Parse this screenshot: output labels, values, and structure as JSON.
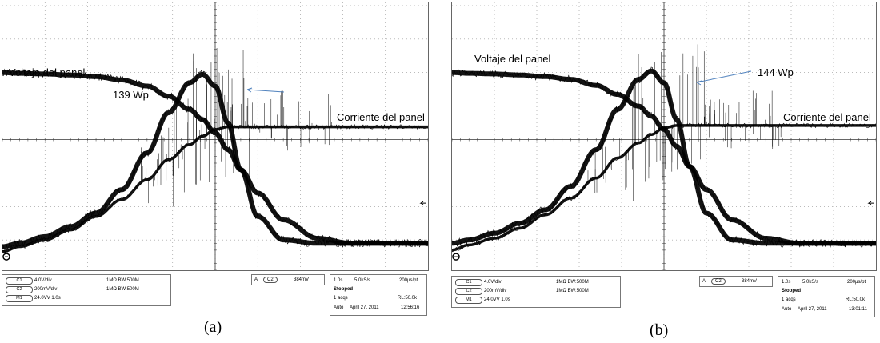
{
  "chart_data": [
    {
      "type": "line",
      "panel_caption": "(a)",
      "x_time_s": [
        0.0,
        0.4,
        1.0,
        1.6,
        2.2,
        2.8,
        3.4,
        3.9,
        4.4,
        4.7,
        5.0,
        5.3,
        5.6,
        6.0,
        6.6,
        7.4,
        8.2,
        9.0,
        9.7,
        10.0
      ],
      "series": [
        {
          "name": "Voltaje del panel",
          "values_div": [
            2.0,
            1.98,
            1.96,
            1.93,
            1.88,
            1.78,
            1.6,
            1.3,
            0.9,
            0.6,
            0.2,
            -0.3,
            -0.9,
            -1.6,
            -2.4,
            -2.95,
            -3.1,
            -3.1,
            -3.1,
            -3.1
          ]
        },
        {
          "name": "Corriente del panel",
          "values_div": [
            -3.35,
            -3.2,
            -3.0,
            -2.7,
            -2.3,
            -1.8,
            -1.2,
            -0.6,
            -0.15,
            0.1,
            0.3,
            0.38,
            0.38,
            0.38,
            0.38,
            0.38,
            0.38,
            0.38,
            0.38,
            0.38
          ]
        },
        {
          "name": "",
          "values_div": [
            -3.2,
            -3.1,
            -2.9,
            -2.6,
            -2.2,
            -1.5,
            -0.4,
            0.8,
            1.7,
            1.95,
            1.6,
            0.5,
            -0.9,
            -2.3,
            -3.0,
            -3.1,
            -3.1,
            -3.1,
            -3.1,
            -3.1
          ]
        }
      ],
      "annotations": {
        "voltage_label": "Voltaje del panel",
        "current_label": "Corriente del panel",
        "power_label": "139 Wp"
      },
      "grid": true,
      "xlim": [
        0,
        10
      ],
      "ylim": [
        -4,
        4
      ]
    },
    {
      "type": "line",
      "panel_caption": "(b)",
      "x_time_s": [
        0.0,
        0.4,
        1.0,
        1.6,
        2.2,
        2.8,
        3.4,
        3.9,
        4.4,
        4.7,
        5.0,
        5.3,
        5.6,
        6.0,
        6.6,
        7.4,
        8.2,
        9.0,
        9.7,
        10.0
      ],
      "series": [
        {
          "name": "Voltaje del panel",
          "values_div": [
            2.0,
            1.98,
            1.96,
            1.93,
            1.88,
            1.8,
            1.62,
            1.35,
            1.0,
            0.7,
            0.3,
            -0.2,
            -0.8,
            -1.5,
            -2.4,
            -2.95,
            -3.1,
            -3.1,
            -3.1,
            -3.1
          ]
        },
        {
          "name": "Corriente del panel",
          "values_div": [
            -3.3,
            -3.15,
            -2.95,
            -2.65,
            -2.25,
            -1.75,
            -1.15,
            -0.55,
            -0.1,
            0.15,
            0.35,
            0.42,
            0.42,
            0.42,
            0.42,
            0.42,
            0.42,
            0.42,
            0.42,
            0.42
          ]
        },
        {
          "name": "",
          "values_div": [
            -3.1,
            -3.0,
            -2.8,
            -2.5,
            -2.1,
            -1.4,
            -0.3,
            0.9,
            1.8,
            2.05,
            1.7,
            0.6,
            -0.8,
            -2.2,
            -3.0,
            -3.1,
            -3.1,
            -3.1,
            -3.1,
            -3.1
          ]
        }
      ],
      "annotations": {
        "voltage_label": "Voltaje del panel",
        "current_label": "Corriente del panel",
        "power_label": "144 Wp"
      },
      "grid": true,
      "xlim": [
        0,
        10
      ],
      "ylim": [
        -4,
        4
      ]
    }
  ],
  "status": [
    {
      "c1_tag": "C1",
      "c1_scale": "4.0V/div",
      "c1_imp": "1MΩ BW:500M",
      "c2_tag": "C2",
      "c2_scale": "200mV/div",
      "c2_imp": "1MΩ BW:500M",
      "m1_tag": "M1",
      "m1_scale": "24.0VV 1.0s",
      "trigger_flag": "A",
      "trigger_chan": "C2",
      "trigger_level": "384mV",
      "timebase": "1.0s",
      "sample_rate": "5.0kS/s",
      "pts": "200µs/pt",
      "run_state": "Stopped",
      "acqs": "1 acqs",
      "record_len": "RL:50.0k",
      "mode": "Auto",
      "date": "April 27, 2011",
      "time": "12:56:16"
    },
    {
      "c1_tag": "C1",
      "c1_scale": "4.0V/div",
      "c1_imp": "1MΩ BW:500M",
      "c2_tag": "C2",
      "c2_scale": "200mV/div",
      "c2_imp": "1MΩ BW:500M",
      "m1_tag": "M1",
      "m1_scale": "24.0VV 1.0s",
      "trigger_flag": "A",
      "trigger_chan": "C2",
      "trigger_level": "384mV",
      "timebase": "1.0s",
      "sample_rate": "5.0kS/s",
      "pts": "200µs/pt",
      "run_state": "Stopped",
      "acqs": "1 acqs",
      "record_len": "RL:50.0k",
      "mode": "Auto",
      "date": "April 27, 2011",
      "time": "13:01:11"
    }
  ],
  "colors": {
    "trace": "#000000",
    "grid": "#777777",
    "background": "#ffffff"
  }
}
